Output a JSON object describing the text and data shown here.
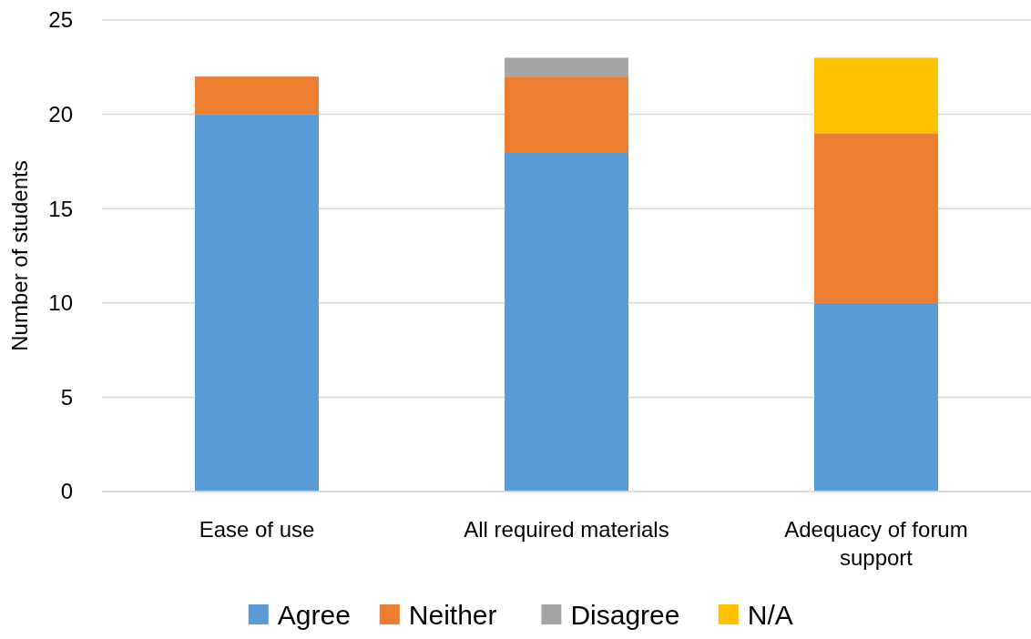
{
  "chart_data": {
    "type": "bar",
    "stacked": true,
    "ylabel": "Number of students",
    "categories": [
      "Ease of use",
      "All required materials",
      "Adequacy of forum support"
    ],
    "series": [
      {
        "name": "Agree",
        "color": "#5b9bd5",
        "values": [
          20,
          18,
          10
        ]
      },
      {
        "name": "Neither",
        "color": "#ed7d31",
        "values": [
          2,
          4,
          9
        ]
      },
      {
        "name": "Disagree",
        "color": "#a5a5a5",
        "values": [
          0,
          1,
          0
        ]
      },
      {
        "name": "N/A",
        "color": "#ffc000",
        "values": [
          0,
          0,
          4
        ]
      }
    ],
    "ylim": [
      0,
      25
    ],
    "yticks": [
      0,
      5,
      10,
      15,
      20,
      25
    ],
    "grid": "y",
    "legend": "bottom"
  }
}
